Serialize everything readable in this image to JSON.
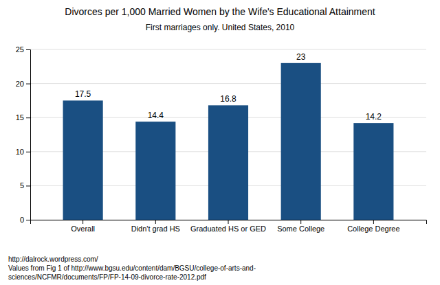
{
  "chart_data": {
    "type": "bar",
    "title": "Divorces per 1,000 Married Women by the Wife's Educational Attainment",
    "subtitle": "First marriages only.  United States, 2010",
    "categories": [
      "Overall",
      "Didn't grad HS",
      "Graduated HS or GED",
      "Some College",
      "College Degree"
    ],
    "values": [
      17.5,
      14.4,
      16.8,
      23,
      14.2
    ],
    "color": "#1a4f82",
    "ylim": [
      0,
      25
    ],
    "yticks": [
      0,
      5,
      10,
      15,
      20,
      25
    ],
    "grid": true,
    "data_labels": true,
    "annotations": [
      "http://dalrock.wordpress.com/",
      "Values from Fig 1 of http://www.bgsu.edu/content/dam/BGSU/college-of-arts-and-",
      "sciences/NCFMR/documents/FP/FP-14-09-divorce-rate-2012.pdf"
    ]
  }
}
